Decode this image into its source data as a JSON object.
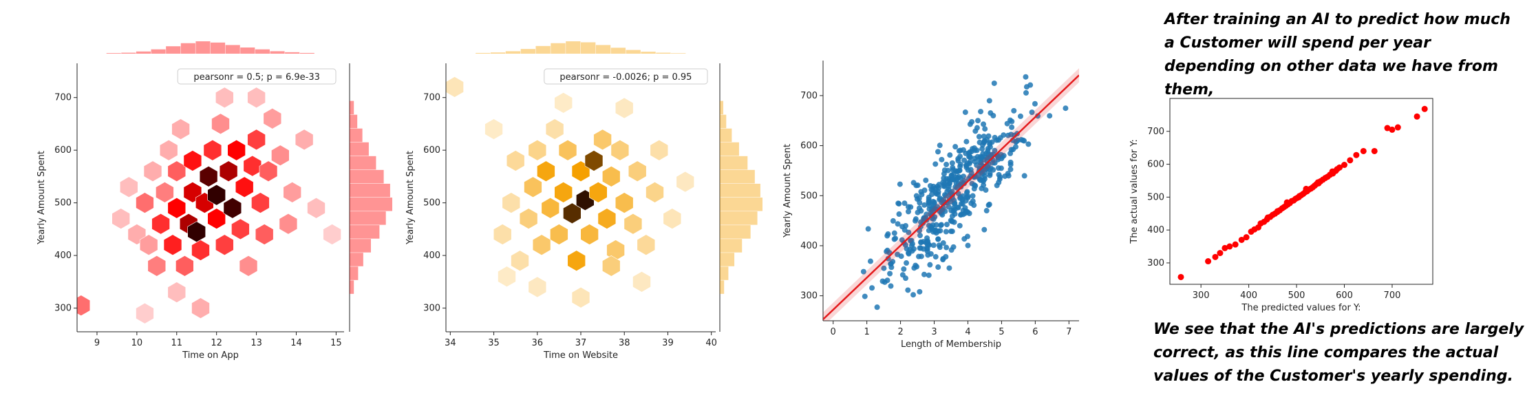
{
  "notes": {
    "top": "After training an AI to predict how much a Customer will spend per year depending on other data we have from them,",
    "bottom": "We see that the AI's predictions are largely correct, as this line compares the actual values of the Customer's yearly spending."
  },
  "chart_data": [
    {
      "id": "chart1",
      "type": "heatmap",
      "subtype": "hexbin-jointplot",
      "color": "#ff0000",
      "annotation": "pearsonr = 0.5; p = 6.9e-33",
      "xlabel": "Time on App",
      "ylabel": "Yearly Amount Spent",
      "xlim": [
        8.5,
        15.2
      ],
      "ylim": [
        255,
        765
      ],
      "xticks": [
        9,
        10,
        11,
        12,
        13,
        14,
        15
      ],
      "yticks": [
        300,
        400,
        500,
        600,
        700
      ],
      "grid": false,
      "hexes": [
        [
          8.6,
          305,
          0.4
        ],
        [
          9.6,
          470,
          0.15
        ],
        [
          9.8,
          530,
          0.15
        ],
        [
          10.0,
          440,
          0.2
        ],
        [
          10.2,
          500,
          0.4
        ],
        [
          10.3,
          420,
          0.25
        ],
        [
          10.4,
          560,
          0.2
        ],
        [
          10.5,
          380,
          0.35
        ],
        [
          10.6,
          460,
          0.6
        ],
        [
          10.7,
          520,
          0.35
        ],
        [
          10.8,
          600,
          0.2
        ],
        [
          10.9,
          420,
          0.65
        ],
        [
          11.0,
          490,
          0.75
        ],
        [
          11.0,
          560,
          0.45
        ],
        [
          11.1,
          640,
          0.2
        ],
        [
          11.2,
          380,
          0.45
        ],
        [
          11.3,
          460,
          0.85
        ],
        [
          11.4,
          520,
          0.8
        ],
        [
          11.4,
          580,
          0.7
        ],
        [
          11.5,
          445,
          1.0
        ],
        [
          11.6,
          410,
          0.6
        ],
        [
          11.7,
          500,
          0.8
        ],
        [
          11.8,
          550,
          0.95
        ],
        [
          11.9,
          600,
          0.6
        ],
        [
          12.0,
          515,
          1.0
        ],
        [
          12.0,
          470,
          0.75
        ],
        [
          12.1,
          650,
          0.3
        ],
        [
          12.2,
          420,
          0.55
        ],
        [
          12.3,
          560,
          0.85
        ],
        [
          12.4,
          490,
          0.98
        ],
        [
          12.5,
          600,
          0.75
        ],
        [
          12.6,
          450,
          0.55
        ],
        [
          12.7,
          530,
          0.7
        ],
        [
          12.8,
          380,
          0.3
        ],
        [
          12.9,
          570,
          0.6
        ],
        [
          13.0,
          620,
          0.55
        ],
        [
          13.1,
          500,
          0.55
        ],
        [
          13.2,
          440,
          0.45
        ],
        [
          13.3,
          560,
          0.45
        ],
        [
          13.4,
          660,
          0.25
        ],
        [
          13.6,
          590,
          0.3
        ],
        [
          13.8,
          460,
          0.3
        ],
        [
          13.9,
          520,
          0.25
        ],
        [
          14.2,
          620,
          0.2
        ],
        [
          14.5,
          490,
          0.15
        ],
        [
          11.0,
          330,
          0.15
        ],
        [
          11.6,
          300,
          0.2
        ],
        [
          12.2,
          700,
          0.15
        ],
        [
          10.2,
          290,
          0.1
        ],
        [
          13.0,
          700,
          0.15
        ],
        [
          14.9,
          440,
          0.1
        ]
      ],
      "x_marginal": [
        0.05,
        0.08,
        0.18,
        0.35,
        0.6,
        0.85,
        1.0,
        0.9,
        0.7,
        0.5,
        0.35,
        0.2,
        0.12,
        0.06
      ],
      "y_marginal": [
        0.1,
        0.18,
        0.3,
        0.45,
        0.62,
        0.8,
        0.95,
        1.0,
        0.85,
        0.7,
        0.5,
        0.32,
        0.2,
        0.1
      ]
    },
    {
      "id": "chart2",
      "type": "heatmap",
      "subtype": "hexbin-jointplot",
      "color": "#f5a000",
      "annotation": "pearsonr = -0.0026; p = 0.95",
      "xlabel": "Time on Website",
      "ylabel": "Yearly Amount Spent",
      "xlim": [
        33.9,
        40.1
      ],
      "ylim": [
        255,
        765
      ],
      "xticks": [
        34,
        35,
        36,
        37,
        38,
        39,
        40
      ],
      "yticks": [
        300,
        400,
        500,
        600,
        700
      ],
      "grid": false,
      "hexes": [
        [
          34.1,
          720,
          0.15
        ],
        [
          35.0,
          640,
          0.1
        ],
        [
          35.2,
          440,
          0.2
        ],
        [
          35.4,
          500,
          0.2
        ],
        [
          35.5,
          580,
          0.25
        ],
        [
          35.6,
          390,
          0.2
        ],
        [
          35.8,
          470,
          0.35
        ],
        [
          35.9,
          530,
          0.45
        ],
        [
          36.0,
          600,
          0.3
        ],
        [
          36.1,
          420,
          0.4
        ],
        [
          36.2,
          560,
          0.7
        ],
        [
          36.3,
          490,
          0.55
        ],
        [
          36.4,
          640,
          0.2
        ],
        [
          36.5,
          440,
          0.5
        ],
        [
          36.6,
          520,
          0.7
        ],
        [
          36.7,
          600,
          0.45
        ],
        [
          36.8,
          480,
          0.95
        ],
        [
          36.9,
          390,
          0.7
        ],
        [
          37.0,
          560,
          0.75
        ],
        [
          37.1,
          505,
          1.0
        ],
        [
          37.2,
          440,
          0.55
        ],
        [
          37.3,
          580,
          0.9
        ],
        [
          37.4,
          520,
          0.7
        ],
        [
          37.5,
          620,
          0.4
        ],
        [
          37.6,
          470,
          0.65
        ],
        [
          37.7,
          550,
          0.5
        ],
        [
          37.8,
          410,
          0.4
        ],
        [
          37.9,
          600,
          0.35
        ],
        [
          38.0,
          500,
          0.5
        ],
        [
          38.2,
          460,
          0.35
        ],
        [
          38.3,
          560,
          0.35
        ],
        [
          38.5,
          420,
          0.25
        ],
        [
          38.7,
          520,
          0.3
        ],
        [
          38.8,
          600,
          0.2
        ],
        [
          39.1,
          470,
          0.15
        ],
        [
          39.4,
          540,
          0.12
        ],
        [
          36.0,
          340,
          0.12
        ],
        [
          37.0,
          320,
          0.15
        ],
        [
          38.0,
          680,
          0.12
        ],
        [
          36.6,
          690,
          0.1
        ],
        [
          38.4,
          350,
          0.12
        ],
        [
          35.3,
          360,
          0.1
        ],
        [
          37.7,
          380,
          0.35
        ]
      ],
      "x_marginal": [
        0.06,
        0.1,
        0.2,
        0.38,
        0.62,
        0.85,
        1.0,
        0.92,
        0.7,
        0.48,
        0.3,
        0.16,
        0.08,
        0.04
      ],
      "y_marginal": [
        0.08,
        0.15,
        0.28,
        0.45,
        0.65,
        0.82,
        0.95,
        1.0,
        0.88,
        0.72,
        0.52,
        0.34,
        0.2,
        0.1
      ]
    },
    {
      "id": "chart3",
      "type": "scatter",
      "color": "#1f77b4",
      "line_color": "#e41a1c",
      "xlabel": "Length of Membership",
      "ylabel": "Yearly Amount Spent",
      "xlim": [
        -0.3,
        7.3
      ],
      "ylim": [
        250,
        770
      ],
      "xticks": [
        0,
        1,
        2,
        3,
        4,
        5,
        6,
        7
      ],
      "yticks": [
        300,
        400,
        500,
        600,
        700
      ],
      "grid": false,
      "regression": {
        "slope": 64.2,
        "intercept": 272
      },
      "n_points": 500,
      "x_mean": 3.5,
      "x_sd": 1.0,
      "resid_sd": 48
    },
    {
      "id": "chart4",
      "type": "scatter",
      "color": "#ff0000",
      "xlabel": "The predicted values for Y:",
      "ylabel": "The actual values for Y:",
      "xlim": [
        235,
        785
      ],
      "ylim": [
        235,
        800
      ],
      "xticks": [
        300,
        400,
        500,
        600,
        700
      ],
      "yticks": [
        300,
        400,
        500,
        600,
        700
      ],
      "grid": false,
      "points": [
        [
          258,
          257
        ],
        [
          315,
          305
        ],
        [
          330,
          318
        ],
        [
          340,
          330
        ],
        [
          350,
          345
        ],
        [
          360,
          350
        ],
        [
          372,
          356
        ],
        [
          385,
          370
        ],
        [
          395,
          378
        ],
        [
          405,
          395
        ],
        [
          412,
          402
        ],
        [
          420,
          408
        ],
        [
          425,
          420
        ],
        [
          432,
          425
        ],
        [
          438,
          432
        ],
        [
          445,
          440
        ],
        [
          450,
          446
        ],
        [
          455,
          450
        ],
        [
          460,
          455
        ],
        [
          465,
          460
        ],
        [
          470,
          466
        ],
        [
          474,
          470
        ],
        [
          478,
          474
        ],
        [
          482,
          478
        ],
        [
          486,
          482
        ],
        [
          490,
          488
        ],
        [
          494,
          490
        ],
        [
          498,
          495
        ],
        [
          502,
          498
        ],
        [
          506,
          503
        ],
        [
          510,
          506
        ],
        [
          514,
          510
        ],
        [
          518,
          515
        ],
        [
          522,
          518
        ],
        [
          526,
          523
        ],
        [
          530,
          526
        ],
        [
          534,
          530
        ],
        [
          538,
          535
        ],
        [
          542,
          540
        ],
        [
          546,
          542
        ],
        [
          550,
          548
        ],
        [
          555,
          553
        ],
        [
          560,
          558
        ],
        [
          565,
          562
        ],
        [
          570,
          568
        ],
        [
          576,
          572
        ],
        [
          582,
          580
        ],
        [
          590,
          590
        ],
        [
          600,
          598
        ],
        [
          612,
          612
        ],
        [
          625,
          628
        ],
        [
          640,
          640
        ],
        [
          663,
          640
        ],
        [
          690,
          710
        ],
        [
          700,
          705
        ],
        [
          712,
          712
        ],
        [
          752,
          745
        ],
        [
          768,
          768
        ],
        [
          545,
          545
        ],
        [
          505,
          500
        ],
        [
          480,
          484
        ],
        [
          460,
          457
        ],
        [
          440,
          438
        ],
        [
          575,
          578
        ],
        [
          585,
          585
        ],
        [
          520,
          525
        ]
      ]
    }
  ]
}
